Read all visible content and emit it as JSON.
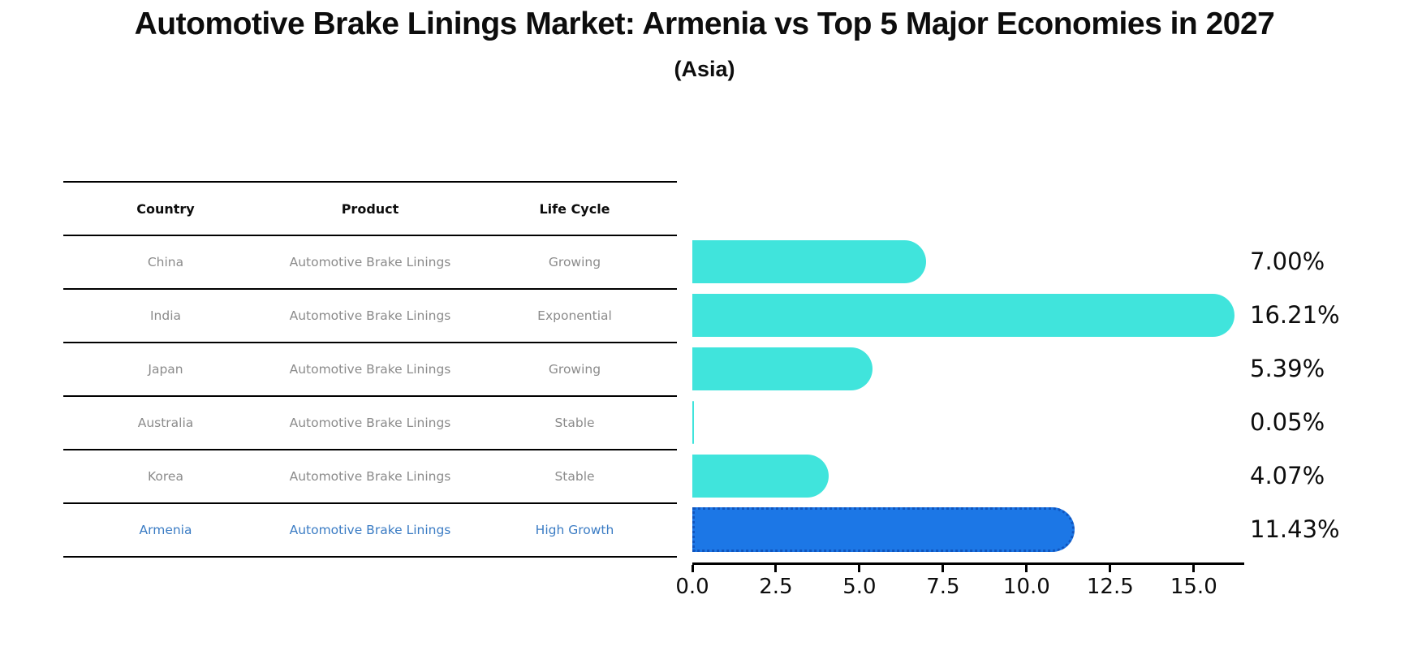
{
  "title": "Automotive Brake Linings Market: Armenia vs Top 5 Major Economies in 2027",
  "subtitle": "(Asia)",
  "table": {
    "headers": [
      "Country",
      "Product",
      "Life Cycle"
    ],
    "rows": [
      {
        "country": "China",
        "product": "Automotive Brake Linings",
        "life_cycle": "Growing",
        "highlight": false
      },
      {
        "country": "India",
        "product": "Automotive Brake Linings",
        "life_cycle": "Exponential",
        "highlight": false
      },
      {
        "country": "Japan",
        "product": "Automotive Brake Linings",
        "life_cycle": "Growing",
        "highlight": false
      },
      {
        "country": "Australia",
        "product": "Automotive Brake Linings",
        "life_cycle": "Stable",
        "highlight": false
      },
      {
        "country": "Korea",
        "product": "Automotive Brake Linings",
        "life_cycle": "Stable",
        "highlight": false
      },
      {
        "country": "Armenia",
        "product": "Automotive Brake Linings",
        "life_cycle": "High Growth",
        "highlight": true
      }
    ]
  },
  "chart_data": {
    "type": "bar",
    "orientation": "horizontal",
    "title": "Automotive Brake Linings Market: Armenia vs Top 5 Major Economies in 2027",
    "subtitle": "(Asia)",
    "categories": [
      "China",
      "India",
      "Japan",
      "Australia",
      "Korea",
      "Armenia"
    ],
    "values": [
      7.0,
      16.21,
      5.39,
      0.05,
      4.07,
      11.43
    ],
    "value_labels": [
      "7.00%",
      "16.21%",
      "5.39%",
      "0.05%",
      "4.07%",
      "11.43%"
    ],
    "x_ticks": [
      "0.0",
      "2.5",
      "5.0",
      "7.5",
      "10.0",
      "12.5",
      "15.0"
    ],
    "xlim": [
      0,
      16.51
    ],
    "grid": false,
    "legend": false,
    "highlight_category": "Armenia"
  },
  "colors": {
    "bar_default": "#40e4dc",
    "bar_highlight": "#1c77e6",
    "bar_highlight_border": "#1055be",
    "highlight_text": "#3b7cc4",
    "table_text": "#8b8b8b",
    "axis_text": "#0d0d0d"
  }
}
